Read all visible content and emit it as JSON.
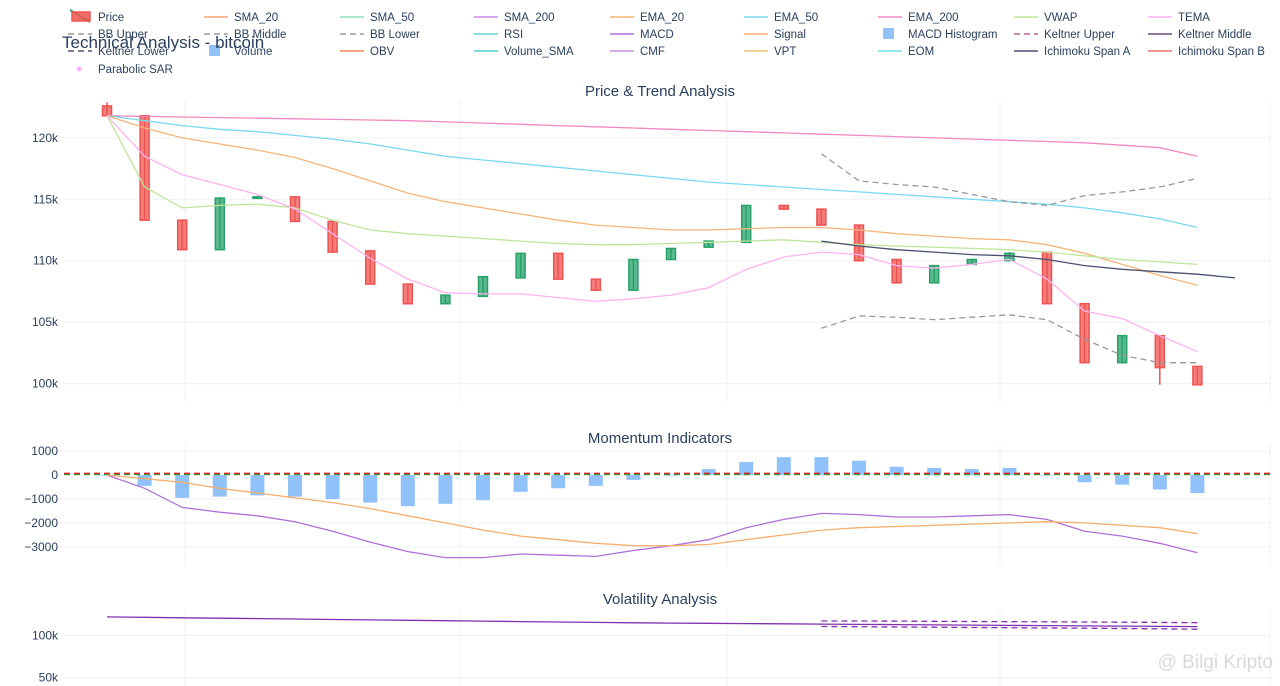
{
  "title": "Technical Analysis - bitcoin",
  "watermark": "@ Bilgi Kripto",
  "colors": {
    "up": "#26a269",
    "down": "#ef5350",
    "volume": "#90c2f9",
    "grid": "#eef0f4",
    "text": "#2a3f5f",
    "sar": "#ffb3ff"
  },
  "chart_data": {
    "type": "line",
    "legend": {
      "placement": "top",
      "entries": [
        {
          "name": "Price",
          "color": "#ef5350",
          "kind": "candle"
        },
        {
          "name": "SMA_20",
          "color": "#f5a37a",
          "kind": "line"
        },
        {
          "name": "SMA_50",
          "color": "#8de0b8",
          "kind": "line"
        },
        {
          "name": "SMA_200",
          "color": "#cf88e8",
          "kind": "line"
        },
        {
          "name": "EMA_20",
          "color": "#f5b57a",
          "kind": "line"
        },
        {
          "name": "EMA_50",
          "color": "#7ad9f0",
          "kind": "line"
        },
        {
          "name": "EMA_200",
          "color": "#f08ac0",
          "kind": "line"
        },
        {
          "name": "VWAP",
          "color": "#bfe59a",
          "kind": "line"
        },
        {
          "name": "TEMA",
          "color": "#ffb3f0",
          "kind": "line"
        },
        {
          "name": "BB Upper",
          "color": "#999999",
          "kind": "dash"
        },
        {
          "name": "BB Middle",
          "color": "#999999",
          "kind": "dash"
        },
        {
          "name": "BB Lower",
          "color": "#999999",
          "kind": "dash"
        },
        {
          "name": "RSI",
          "color": "#62d2d6",
          "kind": "line"
        },
        {
          "name": "MACD",
          "color": "#b070d8",
          "kind": "line"
        },
        {
          "name": "Signal",
          "color": "#f5b070",
          "kind": "line"
        },
        {
          "name": "MACD Histogram",
          "color": "#90c2f9",
          "kind": "box"
        },
        {
          "name": "Keltner Upper",
          "color": "#c06090",
          "kind": "dash"
        },
        {
          "name": "Keltner Middle",
          "color": "#6a4878",
          "kind": "line"
        },
        {
          "name": "Keltner Lower",
          "color": "#6a4878",
          "kind": "dash"
        },
        {
          "name": "Volume",
          "color": "#90c2f9",
          "kind": "box"
        },
        {
          "name": "OBV",
          "color": "#f08a5a",
          "kind": "line"
        },
        {
          "name": "Volume_SMA",
          "color": "#4fcfc8",
          "kind": "line"
        },
        {
          "name": "CMF",
          "color": "#c090e0",
          "kind": "line"
        },
        {
          "name": "VPT",
          "color": "#f0c070",
          "kind": "line"
        },
        {
          "name": "EOM",
          "color": "#70e0e0",
          "kind": "line"
        },
        {
          "name": "Ichimoku Span A",
          "color": "#4a5070",
          "kind": "line"
        },
        {
          "name": "Ichimoku Span B",
          "color": "#f07070",
          "kind": "line"
        },
        {
          "name": "Parabolic SAR",
          "color": "#ffb3ff",
          "kind": "dot"
        }
      ]
    },
    "panels": [
      {
        "title": "Price & Trend Analysis",
        "ylim": [
          98500,
          123000
        ],
        "yticks": [
          100000,
          105000,
          110000,
          115000,
          120000
        ],
        "ytick_labels": [
          "100k",
          "105k",
          "110k",
          "115k",
          "120k"
        ],
        "candles": [
          {
            "o": 122600,
            "h": 122900,
            "l": 121800,
            "c": 121800
          },
          {
            "o": 121800,
            "h": 121800,
            "l": 113300,
            "c": 113300
          },
          {
            "o": 113300,
            "h": 113300,
            "l": 110900,
            "c": 110900
          },
          {
            "o": 110900,
            "h": 115100,
            "l": 110900,
            "c": 115100
          },
          {
            "o": 115200,
            "h": 115300,
            "l": 115100,
            "c": 115200
          },
          {
            "o": 115200,
            "h": 115200,
            "l": 113200,
            "c": 113200
          },
          {
            "o": 113200,
            "h": 113200,
            "l": 110700,
            "c": 110700
          },
          {
            "o": 110800,
            "h": 110800,
            "l": 108100,
            "c": 108100
          },
          {
            "o": 108100,
            "h": 108100,
            "l": 106500,
            "c": 106500
          },
          {
            "o": 106500,
            "h": 107200,
            "l": 106500,
            "c": 107200
          },
          {
            "o": 107100,
            "h": 108700,
            "l": 107100,
            "c": 108700
          },
          {
            "o": 108600,
            "h": 110600,
            "l": 108600,
            "c": 110600
          },
          {
            "o": 110600,
            "h": 110600,
            "l": 108500,
            "c": 108500
          },
          {
            "o": 108500,
            "h": 108500,
            "l": 107600,
            "c": 107600
          },
          {
            "o": 107600,
            "h": 110100,
            "l": 107600,
            "c": 110100
          },
          {
            "o": 110100,
            "h": 111000,
            "l": 110100,
            "c": 111000
          },
          {
            "o": 111100,
            "h": 111600,
            "l": 111100,
            "c": 111600
          },
          {
            "o": 111500,
            "h": 114500,
            "l": 111500,
            "c": 114500
          },
          {
            "o": 114500,
            "h": 114500,
            "l": 114200,
            "c": 114200
          },
          {
            "o": 114200,
            "h": 114200,
            "l": 112900,
            "c": 112900
          },
          {
            "o": 112900,
            "h": 112900,
            "l": 110000,
            "c": 110000
          },
          {
            "o": 110100,
            "h": 110100,
            "l": 108200,
            "c": 108200
          },
          {
            "o": 108200,
            "h": 109600,
            "l": 108200,
            "c": 109600
          },
          {
            "o": 109700,
            "h": 110100,
            "l": 109700,
            "c": 110100
          },
          {
            "o": 110000,
            "h": 110700,
            "l": 110000,
            "c": 110600
          },
          {
            "o": 110700,
            "h": 110700,
            "l": 106500,
            "c": 106500
          },
          {
            "o": 106500,
            "h": 106500,
            "l": 101700,
            "c": 101700
          },
          {
            "o": 101700,
            "h": 103900,
            "l": 101700,
            "c": 103900
          },
          {
            "o": 103900,
            "h": 103900,
            "l": 99900,
            "c": 101300
          },
          {
            "o": 101400,
            "h": 101400,
            "l": 99900,
            "c": 99900
          }
        ],
        "lines": [
          {
            "name": "EMA_200",
            "color": "#f08ac0",
            "start": 0,
            "values": [
              121800,
              121750,
              121700,
              121650,
              121600,
              121550,
              121500,
              121450,
              121400,
              121300,
              121200,
              121100,
              121000,
              120900,
              120800,
              120700,
              120600,
              120500,
              120400,
              120300,
              120200,
              120100,
              120000,
              119900,
              119800,
              119700,
              119600,
              119400,
              119200,
              118500
            ]
          },
          {
            "name": "EMA_50",
            "color": "#7ad9f0",
            "start": 0,
            "values": [
              121800,
              121400,
              121000,
              120700,
              120500,
              120200,
              119900,
              119500,
              119000,
              118500,
              118200,
              117900,
              117600,
              117300,
              117000,
              116700,
              116400,
              116200,
              116000,
              115800,
              115600,
              115400,
              115200,
              115000,
              114800,
              114600,
              114300,
              113900,
              113400,
              112700
            ]
          },
          {
            "name": "EMA_20",
            "color": "#f5b57a",
            "start": 0,
            "values": [
              121800,
              120800,
              120000,
              119500,
              119000,
              118400,
              117500,
              116500,
              115500,
              114800,
              114300,
              113800,
              113300,
              112900,
              112700,
              112500,
              112500,
              112600,
              112700,
              112700,
              112500,
              112200,
              112000,
              111800,
              111700,
              111300,
              110600,
              109700,
              108800,
              108000
            ]
          },
          {
            "name": "VWAP",
            "color": "#bfe59a",
            "start": 0,
            "values": [
              121800,
              116000,
              114300,
              114500,
              114600,
              114300,
              113300,
              112500,
              112200,
              112000,
              111800,
              111600,
              111400,
              111300,
              111300,
              111400,
              111500,
              111600,
              111700,
              111500,
              111300,
              111200,
              111100,
              111000,
              110900,
              110700,
              110400,
              110100,
              109900,
              109700
            ]
          },
          {
            "name": "TEMA",
            "color": "#ffb3f0",
            "start": 0,
            "values": [
              121800,
              118500,
              117000,
              116200,
              115400,
              114200,
              112200,
              110200,
              108500,
              107400,
              107300,
              107300,
              107000,
              106700,
              106900,
              107200,
              107800,
              109300,
              110300,
              110700,
              110500,
              109600,
              109400,
              109700,
              110100,
              108500,
              105900,
              105300,
              103900,
              102600
            ]
          },
          {
            "name": "Ichimoku Span A",
            "color": "#4a5070",
            "start": 19,
            "values": [
              111600,
              111200,
              110900,
              110700,
              110500,
              110400,
              110100,
              109600,
              109300,
              109100,
              108900,
              108600
            ]
          },
          {
            "name": "BB Upper",
            "color": "#999999",
            "dash": true,
            "start": 19,
            "values": [
              118700,
              116500,
              116200,
              116000,
              115400,
              114800,
              114500,
              115300,
              115600,
              116000,
              116700
            ]
          },
          {
            "name": "BB Lower",
            "color": "#999999",
            "dash": true,
            "start": 19,
            "values": [
              104500,
              105500,
              105400,
              105200,
              105400,
              105600,
              105200,
              103600,
              102300,
              101700,
              101700
            ]
          }
        ]
      },
      {
        "title": "Momentum Indicators",
        "ylim": [
          -3800,
          1300
        ],
        "yticks": [
          -3000,
          -2000,
          -1000,
          0,
          1000
        ],
        "ytick_labels": [
          "−3000",
          "−2000",
          "−1000",
          "0",
          "1000"
        ],
        "histogram": [
          0,
          -450,
          -950,
          -900,
          -850,
          -900,
          -1000,
          -1150,
          -1300,
          -1200,
          -1050,
          -700,
          -550,
          -450,
          -200,
          0,
          250,
          550,
          750,
          750,
          600,
          350,
          300,
          250,
          300,
          0,
          -300,
          -400,
          -600,
          -750
        ],
        "lines": [
          {
            "name": "MACD",
            "color": "#b070d8",
            "start": 0,
            "values": [
              0,
              -550,
              -1350,
              -1550,
              -1700,
              -1950,
              -2350,
              -2800,
              -3200,
              -3450,
              -3450,
              -3300,
              -3350,
              -3400,
              -3150,
              -2950,
              -2700,
              -2200,
              -1850,
              -1600,
              -1650,
              -1750,
              -1750,
              -1700,
              -1650,
              -1850,
              -2350,
              -2550,
              -2850,
              -3250
            ]
          },
          {
            "name": "Signal",
            "color": "#f5b070",
            "start": 0,
            "values": [
              0,
              -150,
              -300,
              -550,
              -750,
              -950,
              -1150,
              -1400,
              -1700,
              -2000,
              -2300,
              -2550,
              -2700,
              -2850,
              -2950,
              -2950,
              -2900,
              -2700,
              -2500,
              -2300,
              -2200,
              -2150,
              -2100,
              -2050,
              -2000,
              -1950,
              -2000,
              -2100,
              -2200,
              -2450
            ]
          }
        ],
        "refs": [
          {
            "value": 30,
            "color": "#2ca02c",
            "dash": true
          },
          {
            "value": 70,
            "color": "#d62728",
            "dash": true
          }
        ]
      },
      {
        "title": "Volatility Analysis",
        "ylim": [
          40000,
          130000
        ],
        "yticks": [
          50000,
          100000
        ],
        "ytick_labels": [
          "50k",
          "100k"
        ],
        "lines": [
          {
            "name": "Keltner Middle",
            "color": "#8030b0",
            "start": 0,
            "values": [
              121800,
              121300,
              120800,
              120300,
              119800,
              119300,
              118800,
              118300,
              117800,
              117300,
              116800,
              116300,
              115800,
              115300,
              114800,
              114500,
              114200,
              113900,
              113600,
              113300,
              113000,
              112700,
              112400,
              112100,
              111800,
              111500,
              111200,
              110900,
              110600,
              110300
            ]
          },
          {
            "name": "Keltner Upper",
            "color": "#8030b0",
            "dash": true,
            "start": 19,
            "values": [
              117000,
              117000,
              116800,
              116600,
              116400,
              116200,
              116000,
              115800,
              115600,
              115300,
              115000
            ]
          },
          {
            "name": "Keltner Lower",
            "color": "#8030b0",
            "dash": true,
            "start": 19,
            "values": [
              110500,
              110200,
              109900,
              109600,
              109300,
              109000,
              108700,
              108400,
              108100,
              107700,
              107300
            ]
          }
        ]
      }
    ]
  }
}
